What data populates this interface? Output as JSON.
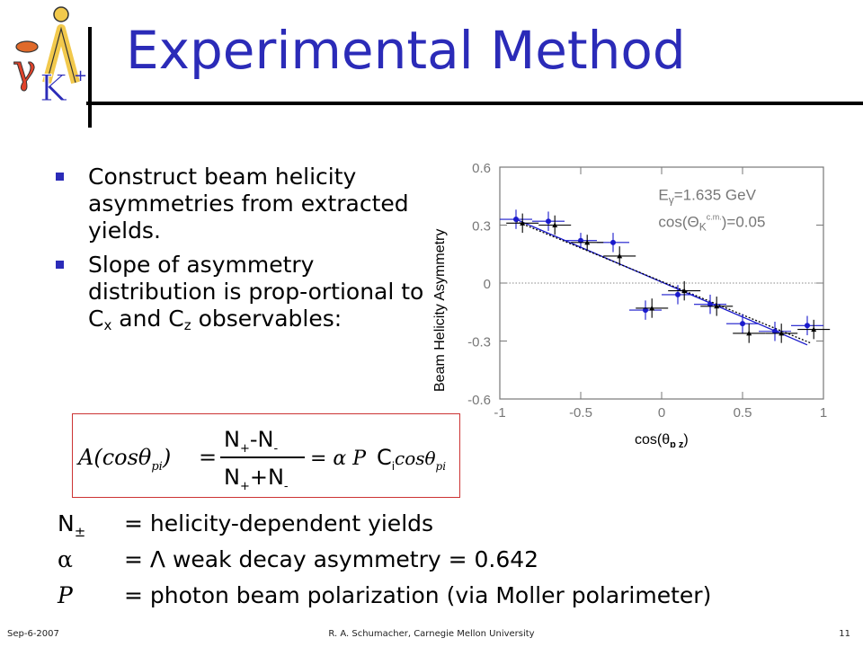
{
  "slide": {
    "title": "Experimental Method",
    "bullets": [
      {
        "text": "Construct beam helicity asymmetries from extracted yields."
      },
      {
        "text_pre": "Slope of asymmetry distribution is prop-ortional to C",
        "sub1": "x",
        "mid": " and C",
        "sub2": "z",
        "post": " observables:"
      }
    ],
    "definitions": [
      {
        "symbol": "N",
        "symbol_sub": "±",
        "text": "= helicity-dependent yields"
      },
      {
        "symbol": "α",
        "text": "= Λ weak decay asymmetry = 0.642"
      },
      {
        "symbol": "P",
        "text": "= photon beam polarization (via Moller polarimeter)"
      }
    ],
    "formula": {
      "lhs": "A(cosθ",
      "lhs_sub": "pi",
      "lhs_close": ")",
      "num_a": "N",
      "num_a_sub": "+",
      "num_op": "-N",
      "num_b_sub": "-",
      "den_a": "N",
      "den_a_sub": "+",
      "den_op": "+N",
      "den_b_sub": "-",
      "rhs_pre": "= α P",
      "rhs_c": "C",
      "rhs_c_sub": "i",
      "rhs_cos": "cosθ",
      "rhs_cos_sub": "pi",
      "eq": "="
    },
    "logo": {
      "gamma": "γ",
      "kaon": "K",
      "kaon_sup": "+",
      "lambda": "Λ"
    },
    "footer": {
      "date": "Sep-6-2007",
      "author": "R. A. Schumacher, Carnegie Mellon University",
      "page": "11"
    },
    "colors": {
      "title": "#2b2bb8",
      "bullet": "#2b2bb8",
      "formula_border": "#cc3333",
      "data_blue": "#1a1acc"
    }
  },
  "chart_data": {
    "type": "scatter",
    "ylabel": "Beam Helicity Asymmetry",
    "xlabel_main": "cos(θ",
    "xlabel_sub": "p z",
    "xlabel_close": ")",
    "xlim": [
      -1,
      1
    ],
    "ylim": [
      -0.6,
      0.6
    ],
    "xticks": [
      -1,
      -0.5,
      0,
      0.5,
      1
    ],
    "xtick_labels": [
      "-1",
      "-0.5",
      "0",
      "0.5",
      "1"
    ],
    "yticks": [
      0.6,
      0.3,
      0,
      -0.3,
      -0.6
    ],
    "ytick_labels": [
      "0.6",
      "0.3",
      "0",
      "-0.3",
      "-0.6"
    ],
    "annotation_line1_pre": "E",
    "annotation_line1_sub": "γ",
    "annotation_line1_post": "=1.635 GeV",
    "annotation_line2_pre": "cos(Θ",
    "annotation_line2_sub": "K",
    "annotation_line2_sup": "c.m.",
    "annotation_line2_post": ")=0.05",
    "zero_line": true,
    "series": [
      {
        "color": "#1a1acc",
        "marker": "circle",
        "x": [
          -0.9,
          -0.7,
          -0.5,
          -0.3,
          -0.1,
          0.1,
          0.3,
          0.5,
          0.7,
          0.9
        ],
        "y": [
          0.33,
          0.32,
          0.22,
          0.21,
          -0.14,
          -0.06,
          -0.11,
          -0.21,
          -0.25,
          -0.22
        ],
        "xerr": [
          0.1,
          0.1,
          0.1,
          0.1,
          0.1,
          0.1,
          0.1,
          0.1,
          0.1,
          0.1
        ],
        "yerr": [
          0.05,
          0.05,
          0.04,
          0.05,
          0.05,
          0.05,
          0.05,
          0.05,
          0.05,
          0.05
        ]
      },
      {
        "color": "#000000",
        "marker": "triangle",
        "x": [
          -0.86,
          -0.66,
          -0.46,
          -0.26,
          -0.06,
          0.14,
          0.34,
          0.54,
          0.74,
          0.94
        ],
        "y": [
          0.31,
          0.3,
          0.21,
          0.14,
          -0.13,
          -0.04,
          -0.12,
          -0.26,
          -0.26,
          -0.24
        ],
        "xerr": [
          0.1,
          0.1,
          0.1,
          0.1,
          0.1,
          0.1,
          0.1,
          0.1,
          0.1,
          0.1
        ],
        "yerr": [
          0.05,
          0.05,
          0.04,
          0.05,
          0.05,
          0.05,
          0.05,
          0.05,
          0.05,
          0.05
        ]
      }
    ],
    "fits": [
      {
        "style": "solid",
        "color": "#1a1acc",
        "x": [
          -0.9,
          0.9
        ],
        "y": [
          0.33,
          -0.32
        ]
      },
      {
        "style": "dotted",
        "color": "#000000",
        "x": [
          -0.9,
          0.92
        ],
        "y": [
          0.32,
          -0.31
        ]
      }
    ]
  }
}
